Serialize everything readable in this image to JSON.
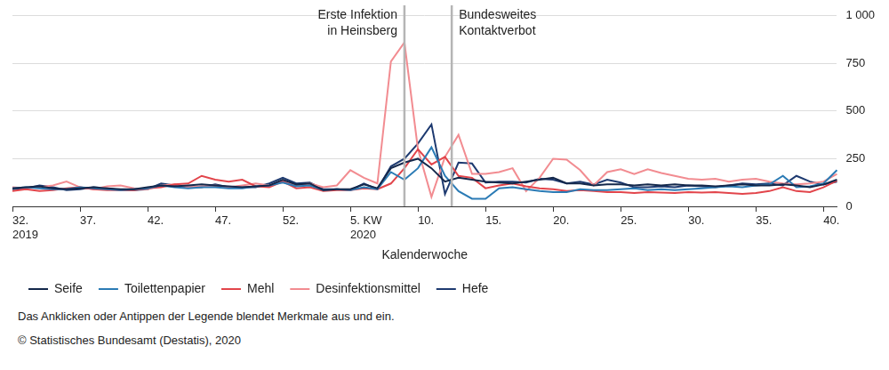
{
  "chart_data": {
    "type": "line",
    "x_title": "Kalenderwoche",
    "categories": [
      "32.\n2019",
      null,
      null,
      null,
      null,
      "37.",
      null,
      null,
      null,
      null,
      "42.",
      null,
      null,
      null,
      null,
      "47.",
      null,
      null,
      null,
      null,
      "52.",
      null,
      null,
      null,
      null,
      "5. KW\n2020",
      null,
      null,
      null,
      null,
      "10.",
      null,
      null,
      null,
      null,
      "15.",
      null,
      null,
      null,
      null,
      "20.",
      null,
      null,
      null,
      null,
      "25.",
      null,
      null,
      null,
      null,
      "30.",
      null,
      null,
      null,
      null,
      "35.",
      null,
      null,
      null,
      null,
      "40.",
      null
    ],
    "series": [
      {
        "name": "Seife",
        "color": "#14284b",
        "values": [
          95,
          100,
          105,
          95,
          90,
          95,
          100,
          95,
          90,
          90,
          100,
          110,
          105,
          110,
          115,
          110,
          105,
          100,
          105,
          110,
          140,
          115,
          120,
          85,
          90,
          90,
          115,
          95,
          200,
          230,
          250,
          200,
          130,
          150,
          140,
          130,
          125,
          120,
          130,
          140,
          150,
          120,
          120,
          110,
          115,
          115,
          110,
          115,
          110,
          115,
          110,
          110,
          105,
          110,
          115,
          110,
          110,
          115,
          110,
          100,
          115,
          140
        ]
      },
      {
        "name": "Toilettenpapier",
        "color": "#2b7bb5",
        "values": [
          95,
          100,
          95,
          90,
          90,
          100,
          95,
          90,
          85,
          90,
          95,
          110,
          100,
          95,
          100,
          100,
          95,
          95,
          105,
          110,
          125,
          105,
          110,
          85,
          90,
          85,
          100,
          90,
          180,
          140,
          200,
          310,
          160,
          80,
          40,
          40,
          95,
          100,
          90,
          80,
          75,
          75,
          90,
          85,
          85,
          90,
          95,
          85,
          90,
          85,
          90,
          95,
          100,
          105,
          100,
          110,
          115,
          160,
          100,
          105,
          120,
          190
        ]
      },
      {
        "name": "Mehl",
        "color": "#e2454b",
        "values": [
          80,
          90,
          80,
          85,
          95,
          100,
          90,
          85,
          85,
          85,
          95,
          100,
          115,
          120,
          160,
          140,
          130,
          140,
          105,
          100,
          130,
          95,
          100,
          80,
          85,
          85,
          95,
          90,
          120,
          200,
          300,
          220,
          260,
          160,
          150,
          95,
          110,
          120,
          105,
          95,
          90,
          80,
          85,
          80,
          75,
          75,
          70,
          75,
          72,
          70,
          75,
          72,
          75,
          70,
          65,
          70,
          80,
          100,
          80,
          75,
          100,
          135
        ]
      },
      {
        "name": "Desinfektionsmittel",
        "color": "#f28c91",
        "values": [
          100,
          95,
          100,
          110,
          130,
          100,
          90,
          105,
          110,
          95,
          90,
          110,
          115,
          100,
          105,
          110,
          100,
          110,
          120,
          110,
          130,
          110,
          120,
          100,
          110,
          190,
          150,
          120,
          760,
          860,
          300,
          50,
          260,
          375,
          170,
          170,
          180,
          200,
          80,
          150,
          250,
          245,
          190,
          110,
          180,
          195,
          170,
          195,
          175,
          160,
          145,
          140,
          145,
          130,
          140,
          145,
          130,
          120,
          115,
          120,
          130,
          170
        ]
      },
      {
        "name": "Hefe",
        "color": "#1e3a70",
        "values": [
          90,
          95,
          110,
          100,
          85,
          90,
          100,
          95,
          85,
          85,
          90,
          120,
          110,
          100,
          100,
          115,
          100,
          100,
          100,
          120,
          150,
          120,
          125,
          90,
          90,
          85,
          120,
          90,
          210,
          250,
          330,
          430,
          65,
          230,
          225,
          125,
          130,
          130,
          125,
          145,
          140,
          120,
          130,
          115,
          140,
          125,
          100,
          100,
          105,
          100,
          110,
          105,
          100,
          110,
          120,
          115,
          120,
          110,
          160,
          130,
          115,
          130
        ]
      }
    ],
    "ylim": [
      0,
      1000
    ],
    "yticks": [
      0,
      250,
      500,
      750,
      {
        "value": 1000,
        "label": "1 000"
      }
    ],
    "grid": true,
    "legend": "bottom",
    "annotations": [
      {
        "label": "Erste Infektion\nin Heinsberg",
        "x": 29
      },
      {
        "label": "Bundesweites\nKontaktverbot",
        "x": 32.5
      }
    ],
    "note": "Das Anklicken oder Antippen der Legende blendet Merkmale aus und ein.",
    "source": "© Statistisches Bundesamt (Destatis), 2020"
  }
}
